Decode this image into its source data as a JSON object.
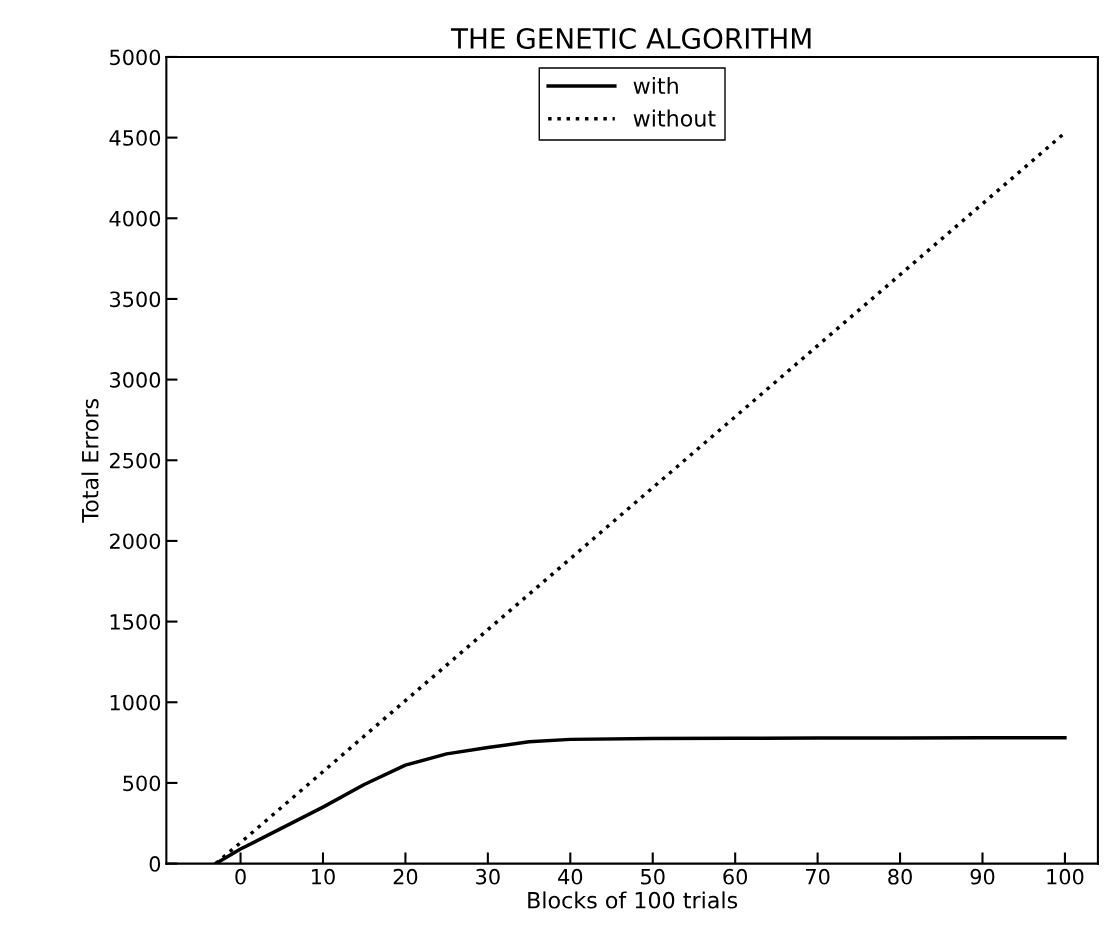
{
  "chart_data": {
    "type": "line",
    "title": "THE GENETIC ALGORITHM",
    "xlabel": "Blocks of 100 trials",
    "ylabel": "Total Errors",
    "xlim": [
      -9,
      104
    ],
    "ylim": [
      0,
      5000
    ],
    "xticks": [
      0,
      10,
      20,
      30,
      40,
      50,
      60,
      70,
      80,
      90,
      100
    ],
    "yticks": [
      0,
      500,
      1000,
      1500,
      2000,
      2500,
      3000,
      3500,
      4000,
      4500,
      5000
    ],
    "grid": false,
    "legend": "top",
    "marker": "none",
    "series": [
      {
        "name": "with",
        "color": "#000000",
        "line_style": "solid",
        "x": [
          -3,
          0,
          5,
          10,
          15,
          20,
          25,
          30,
          35,
          40,
          50,
          60,
          70,
          80,
          90,
          100
        ],
        "values": [
          0,
          90,
          220,
          350,
          490,
          610,
          680,
          720,
          755,
          770,
          775,
          777,
          778,
          779,
          780,
          780
        ]
      },
      {
        "name": "without",
        "color": "#000000",
        "line_style": "dotted",
        "x": [
          -3,
          0,
          20,
          40,
          60,
          80,
          100
        ],
        "values": [
          0,
          130,
          1010,
          1890,
          2770,
          3650,
          4530
        ]
      }
    ]
  }
}
